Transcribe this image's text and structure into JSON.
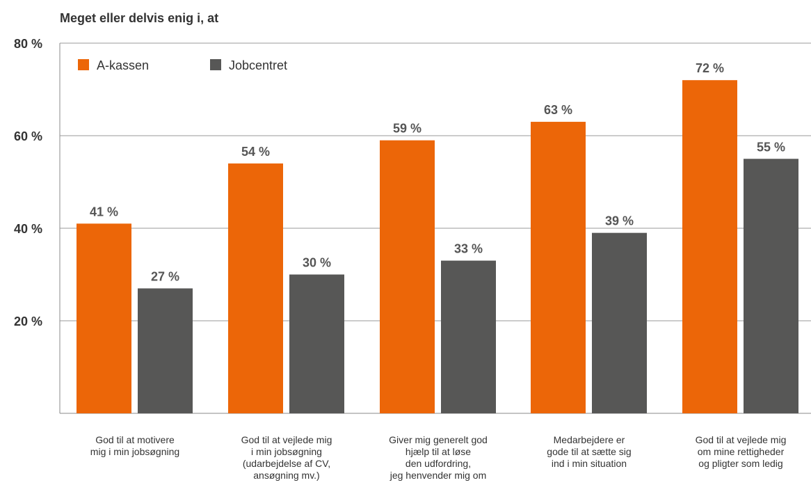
{
  "chart_data": {
    "type": "bar",
    "title": "Meget eller delvis enig i, at",
    "ylim": [
      0,
      80
    ],
    "yticks": [
      "20 %",
      "40 %",
      "60 %",
      "80 %"
    ],
    "grid": true,
    "legend_position": "top-left",
    "categories": [
      [
        "God til at motivere",
        "mig i min jobsøgning"
      ],
      [
        "God til at vejlede mig",
        "i min jobsøgning",
        "(udarbejdelse af CV,",
        "ansøgning mv.)"
      ],
      [
        "Giver mig generelt god",
        "hjælp til at løse",
        "den udfordring,",
        "jeg henvender mig om"
      ],
      [
        "Medarbejdere er",
        "gode til at sætte sig",
        "ind i min situation"
      ],
      [
        "God til at vejlede mig",
        "om mine rettigheder",
        "og pligter som ledig"
      ]
    ],
    "series": [
      {
        "name": "A-kassen",
        "color": "#ec6608",
        "values": [
          41,
          54,
          59,
          63,
          72
        ],
        "labels": [
          "41 %",
          "54 %",
          "59 %",
          "63 %",
          "72 %"
        ]
      },
      {
        "name": "Jobcentret",
        "color": "#575756",
        "values": [
          27,
          30,
          33,
          39,
          55
        ],
        "labels": [
          "27 %",
          "30 %",
          "33 %",
          "39 %",
          "55 %"
        ]
      }
    ]
  }
}
